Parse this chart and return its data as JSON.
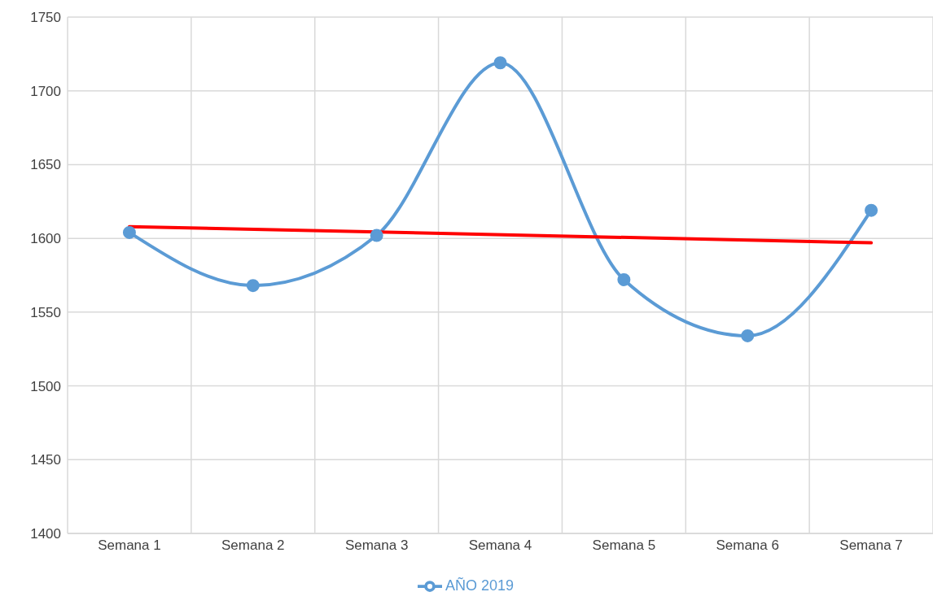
{
  "chart_data": {
    "type": "line",
    "categories": [
      "Semana 1",
      "Semana 2",
      "Semana 3",
      "Semana 4",
      "Semana 5",
      "Semana 6",
      "Semana 7"
    ],
    "series": [
      {
        "name": "AÑO 2019",
        "color": "#5b9bd5",
        "values": [
          1604,
          1568,
          1602,
          1719,
          1572,
          1534,
          1619
        ],
        "marker": "circle"
      },
      {
        "type": "line",
        "color": "#ff0000",
        "x": [
          "Semana 1",
          "Semana 7"
        ],
        "values": [
          1608,
          1597
        ],
        "marker": "none"
      }
    ],
    "ylim": [
      1400,
      1750
    ],
    "yticks": [
      1400,
      1450,
      1500,
      1550,
      1600,
      1650,
      1700,
      1750
    ],
    "grid": true,
    "legend": "bottom"
  }
}
